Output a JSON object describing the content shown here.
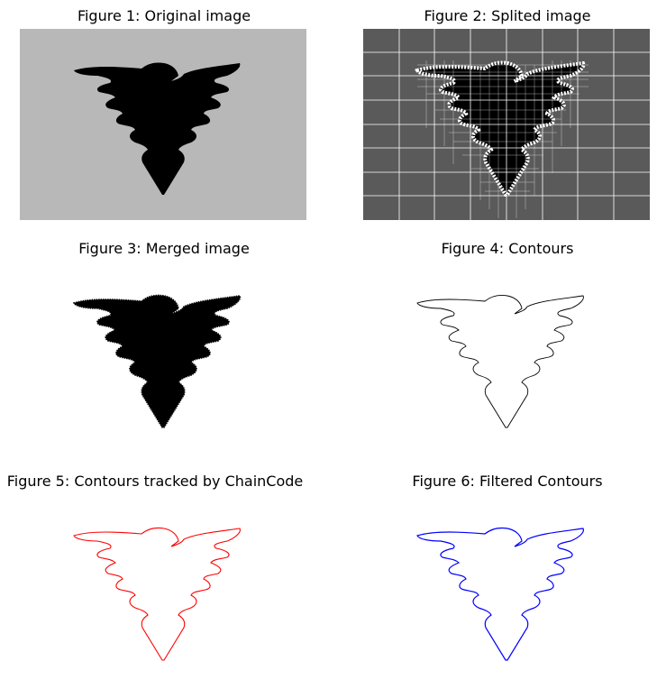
{
  "figures": [
    {
      "title": "Figure 1: Original image"
    },
    {
      "title": "Figure 2: Splited image"
    },
    {
      "title": "Figure 3: Merged image"
    },
    {
      "title": "Figure 4: Contours"
    },
    {
      "title": "Figure 5: Contours tracked by ChainCode"
    },
    {
      "title": "Figure 6: Filtered Contours"
    }
  ],
  "colors": {
    "original_background": "#b8b8b8",
    "split_background": "#5a5a5a",
    "split_grid": "#ffffff",
    "shape_fill": "#000000",
    "contour_black": "#000000",
    "contour_chaincode": "#ff0000",
    "contour_filtered": "#0000ff"
  }
}
